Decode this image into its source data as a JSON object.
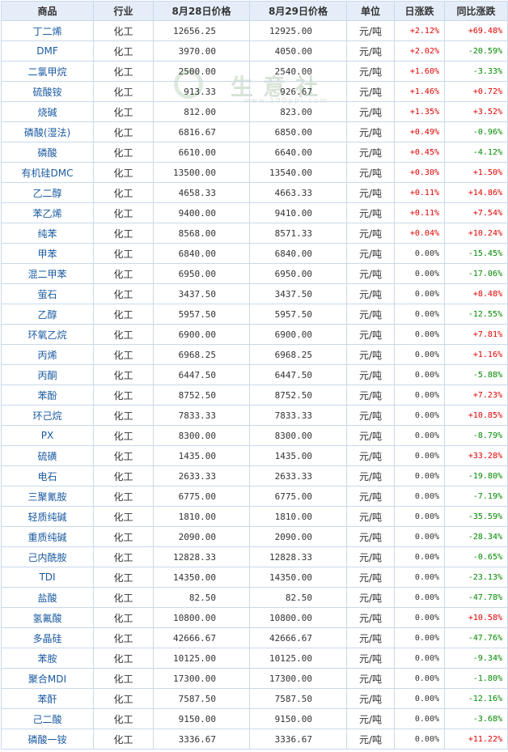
{
  "headers": {
    "name": "商品",
    "industry": "行业",
    "price_prev": "8月28日价格",
    "price_curr": "8月29日价格",
    "unit": "单位",
    "daily": "日涨跌",
    "yoy": "同比涨跌"
  },
  "watermark": {
    "text": "生意社",
    "sub": "www.100ppi.com"
  },
  "rows": [
    {
      "name": "丁二烯",
      "industry": "化工",
      "p1": "12656.25",
      "p2": "12925.00",
      "unit": "元/吨",
      "daily": "+2.12%",
      "yoy": "+69.48%"
    },
    {
      "name": "DMF",
      "industry": "化工",
      "p1": "3970.00",
      "p2": "4050.00",
      "unit": "元/吨",
      "daily": "+2.02%",
      "yoy": "-20.59%"
    },
    {
      "name": "二氯甲烷",
      "industry": "化工",
      "p1": "2500.00",
      "p2": "2540.00",
      "unit": "元/吨",
      "daily": "+1.60%",
      "yoy": "-3.33%"
    },
    {
      "name": "硫酸铵",
      "industry": "化工",
      "p1": "913.33",
      "p2": "926.67",
      "unit": "元/吨",
      "daily": "+1.46%",
      "yoy": "+0.72%"
    },
    {
      "name": "烧碱",
      "industry": "化工",
      "p1": "812.00",
      "p2": "823.00",
      "unit": "元/吨",
      "daily": "+1.35%",
      "yoy": "+3.52%"
    },
    {
      "name": "磷酸(湿法)",
      "industry": "化工",
      "p1": "6816.67",
      "p2": "6850.00",
      "unit": "元/吨",
      "daily": "+0.49%",
      "yoy": "-0.96%"
    },
    {
      "name": "磷酸",
      "industry": "化工",
      "p1": "6610.00",
      "p2": "6640.00",
      "unit": "元/吨",
      "daily": "+0.45%",
      "yoy": "-4.12%"
    },
    {
      "name": "有机硅DMC",
      "industry": "化工",
      "p1": "13500.00",
      "p2": "13540.00",
      "unit": "元/吨",
      "daily": "+0.30%",
      "yoy": "+1.50%"
    },
    {
      "name": "乙二醇",
      "industry": "化工",
      "p1": "4658.33",
      "p2": "4663.33",
      "unit": "元/吨",
      "daily": "+0.11%",
      "yoy": "+14.86%"
    },
    {
      "name": "苯乙烯",
      "industry": "化工",
      "p1": "9400.00",
      "p2": "9410.00",
      "unit": "元/吨",
      "daily": "+0.11%",
      "yoy": "+7.54%"
    },
    {
      "name": "纯苯",
      "industry": "化工",
      "p1": "8568.00",
      "p2": "8571.33",
      "unit": "元/吨",
      "daily": "+0.04%",
      "yoy": "+10.24%"
    },
    {
      "name": "甲苯",
      "industry": "化工",
      "p1": "6840.00",
      "p2": "6840.00",
      "unit": "元/吨",
      "daily": "0.00%",
      "yoy": "-15.45%"
    },
    {
      "name": "混二甲苯",
      "industry": "化工",
      "p1": "6950.00",
      "p2": "6950.00",
      "unit": "元/吨",
      "daily": "0.00%",
      "yoy": "-17.06%"
    },
    {
      "name": "萤石",
      "industry": "化工",
      "p1": "3437.50",
      "p2": "3437.50",
      "unit": "元/吨",
      "daily": "0.00%",
      "yoy": "+8.48%"
    },
    {
      "name": "乙醇",
      "industry": "化工",
      "p1": "5957.50",
      "p2": "5957.50",
      "unit": "元/吨",
      "daily": "0.00%",
      "yoy": "-12.55%"
    },
    {
      "name": "环氧乙烷",
      "industry": "化工",
      "p1": "6900.00",
      "p2": "6900.00",
      "unit": "元/吨",
      "daily": "0.00%",
      "yoy": "+7.81%"
    },
    {
      "name": "丙烯",
      "industry": "化工",
      "p1": "6968.25",
      "p2": "6968.25",
      "unit": "元/吨",
      "daily": "0.00%",
      "yoy": "+1.16%"
    },
    {
      "name": "丙酮",
      "industry": "化工",
      "p1": "6447.50",
      "p2": "6447.50",
      "unit": "元/吨",
      "daily": "0.00%",
      "yoy": "-5.88%"
    },
    {
      "name": "苯酚",
      "industry": "化工",
      "p1": "8752.50",
      "p2": "8752.50",
      "unit": "元/吨",
      "daily": "0.00%",
      "yoy": "+7.23%"
    },
    {
      "name": "环己烷",
      "industry": "化工",
      "p1": "7833.33",
      "p2": "7833.33",
      "unit": "元/吨",
      "daily": "0.00%",
      "yoy": "+10.85%"
    },
    {
      "name": "PX",
      "industry": "化工",
      "p1": "8300.00",
      "p2": "8300.00",
      "unit": "元/吨",
      "daily": "0.00%",
      "yoy": "-8.79%"
    },
    {
      "name": "硫磺",
      "industry": "化工",
      "p1": "1435.00",
      "p2": "1435.00",
      "unit": "元/吨",
      "daily": "0.00%",
      "yoy": "+33.28%"
    },
    {
      "name": "电石",
      "industry": "化工",
      "p1": "2633.33",
      "p2": "2633.33",
      "unit": "元/吨",
      "daily": "0.00%",
      "yoy": "-19.80%"
    },
    {
      "name": "三聚氰胺",
      "industry": "化工",
      "p1": "6775.00",
      "p2": "6775.00",
      "unit": "元/吨",
      "daily": "0.00%",
      "yoy": "-7.19%"
    },
    {
      "name": "轻质纯碱",
      "industry": "化工",
      "p1": "1810.00",
      "p2": "1810.00",
      "unit": "元/吨",
      "daily": "0.00%",
      "yoy": "-35.59%"
    },
    {
      "name": "重质纯碱",
      "industry": "化工",
      "p1": "2090.00",
      "p2": "2090.00",
      "unit": "元/吨",
      "daily": "0.00%",
      "yoy": "-28.34%"
    },
    {
      "name": "己内酰胺",
      "industry": "化工",
      "p1": "12828.33",
      "p2": "12828.33",
      "unit": "元/吨",
      "daily": "0.00%",
      "yoy": "-0.65%"
    },
    {
      "name": "TDI",
      "industry": "化工",
      "p1": "14350.00",
      "p2": "14350.00",
      "unit": "元/吨",
      "daily": "0.00%",
      "yoy": "-23.13%"
    },
    {
      "name": "盐酸",
      "industry": "化工",
      "p1": "82.50",
      "p2": "82.50",
      "unit": "元/吨",
      "daily": "0.00%",
      "yoy": "-47.78%"
    },
    {
      "name": "氢氟酸",
      "industry": "化工",
      "p1": "10800.00",
      "p2": "10800.00",
      "unit": "元/吨",
      "daily": "0.00%",
      "yoy": "+10.58%"
    },
    {
      "name": "多晶硅",
      "industry": "化工",
      "p1": "42666.67",
      "p2": "42666.67",
      "unit": "元/吨",
      "daily": "0.00%",
      "yoy": "-47.76%"
    },
    {
      "name": "苯胺",
      "industry": "化工",
      "p1": "10125.00",
      "p2": "10125.00",
      "unit": "元/吨",
      "daily": "0.00%",
      "yoy": "-9.34%"
    },
    {
      "name": "聚合MDI",
      "industry": "化工",
      "p1": "17300.00",
      "p2": "17300.00",
      "unit": "元/吨",
      "daily": "0.00%",
      "yoy": "-1.80%"
    },
    {
      "name": "苯酐",
      "industry": "化工",
      "p1": "7587.50",
      "p2": "7587.50",
      "unit": "元/吨",
      "daily": "0.00%",
      "yoy": "-12.16%"
    },
    {
      "name": "己二酸",
      "industry": "化工",
      "p1": "9150.00",
      "p2": "9150.00",
      "unit": "元/吨",
      "daily": "0.00%",
      "yoy": "-3.68%"
    },
    {
      "name": "磷酸一铵",
      "industry": "化工",
      "p1": "3336.67",
      "p2": "3336.67",
      "unit": "元/吨",
      "daily": "0.00%",
      "yoy": "+11.22%"
    }
  ]
}
